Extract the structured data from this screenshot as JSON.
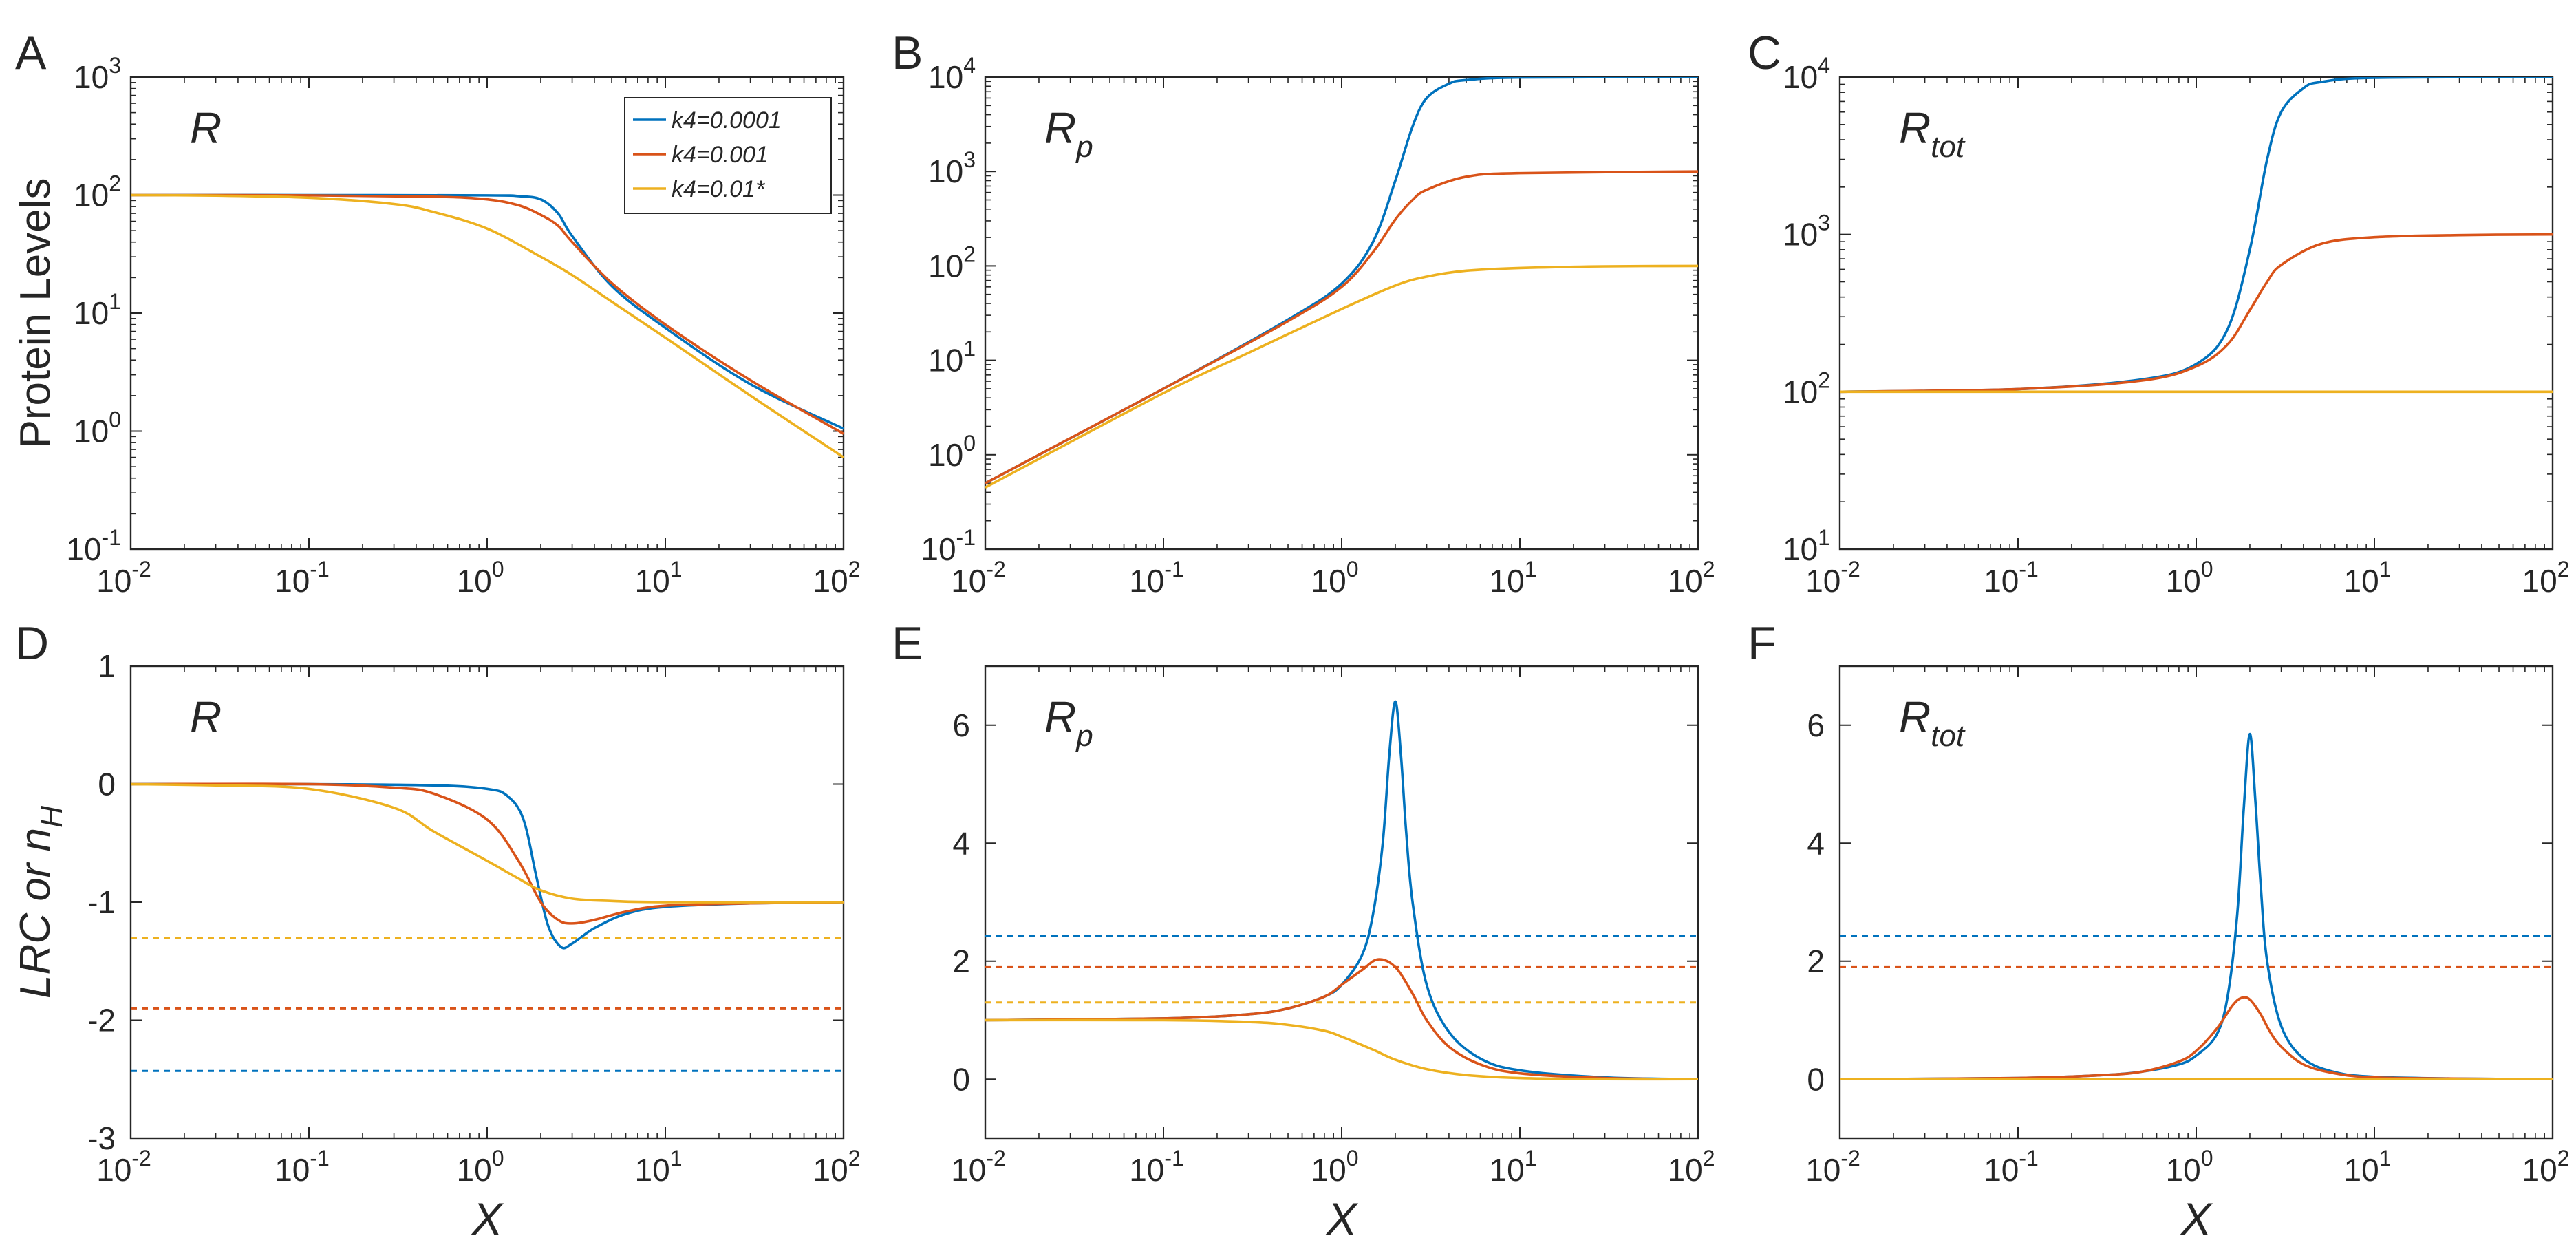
{
  "chart_data": [
    {
      "panel": "A",
      "title": "R",
      "title_sub": "",
      "type": "line",
      "xscale": "log",
      "yscale": "log",
      "xlim": [
        0.01,
        100
      ],
      "ylim": [
        0.1,
        1000
      ],
      "xlabel": "",
      "ylabel": "Protein Levels",
      "xticks": [
        {
          "base": "10",
          "exp": "-2"
        },
        {
          "base": "10",
          "exp": "-1"
        },
        {
          "base": "10",
          "exp": "0"
        },
        {
          "base": "10",
          "exp": "1"
        },
        {
          "base": "10",
          "exp": "2"
        }
      ],
      "yticks": [
        {
          "base": "10",
          "exp": "-1"
        },
        {
          "base": "10",
          "exp": "0"
        },
        {
          "base": "10",
          "exp": "1"
        },
        {
          "base": "10",
          "exp": "2"
        },
        {
          "base": "10",
          "exp": "3"
        }
      ],
      "legend": {
        "placement": "top-right",
        "entries": [
          "k4=0.0001",
          "k4=0.001",
          "k4=0.01*"
        ]
      },
      "series": [
        {
          "name": "k4=0.0001",
          "color": "#0072bd",
          "x": [
            0.01,
            0.1,
            1,
            1.5,
            2,
            2.5,
            3,
            5,
            10,
            30,
            100
          ],
          "y": [
            100,
            100,
            99.5,
            98,
            92,
            70,
            45,
            17,
            7.5,
            2.5,
            1.05
          ]
        },
        {
          "name": "k4=0.001",
          "color": "#d95319",
          "x": [
            0.01,
            0.1,
            0.5,
            1,
            1.5,
            2,
            2.5,
            3,
            5,
            10,
            30,
            100
          ],
          "y": [
            100,
            99.5,
            97,
            92,
            82,
            68,
            55,
            40,
            18,
            8,
            2.7,
            0.95
          ]
        },
        {
          "name": "k4=0.01*",
          "color": "#edb120",
          "x": [
            0.01,
            0.03,
            0.1,
            0.3,
            0.5,
            1,
            2,
            3,
            5,
            10,
            30,
            100
          ],
          "y": [
            100,
            99,
            95,
            84,
            72,
            52,
            30,
            21,
            12.5,
            6.2,
            2,
            0.6
          ]
        }
      ]
    },
    {
      "panel": "B",
      "title": "R",
      "title_sub": "p",
      "type": "line",
      "xscale": "log",
      "yscale": "log",
      "xlim": [
        0.01,
        100
      ],
      "ylim": [
        0.1,
        10000
      ],
      "xlabel": "",
      "ylabel": "",
      "xticks": [
        {
          "base": "10",
          "exp": "-2"
        },
        {
          "base": "10",
          "exp": "-1"
        },
        {
          "base": "10",
          "exp": "0"
        },
        {
          "base": "10",
          "exp": "1"
        },
        {
          "base": "10",
          "exp": "2"
        }
      ],
      "yticks": [
        {
          "base": "10",
          "exp": "-1"
        },
        {
          "base": "10",
          "exp": "0"
        },
        {
          "base": "10",
          "exp": "1"
        },
        {
          "base": "10",
          "exp": "2"
        },
        {
          "base": "10",
          "exp": "3"
        },
        {
          "base": "10",
          "exp": "4"
        }
      ],
      "series": [
        {
          "name": "k4=0.0001",
          "color": "#0072bd",
          "x": [
            0.01,
            0.1,
            0.5,
            1,
            1.5,
            2,
            2.5,
            3,
            4,
            5,
            10,
            100
          ],
          "y": [
            0.5,
            5,
            27,
            65,
            180,
            800,
            3000,
            6000,
            8500,
            9300,
            9900,
            10000
          ]
        },
        {
          "name": "k4=0.001",
          "color": "#d95319",
          "x": [
            0.01,
            0.1,
            0.5,
            1,
            1.5,
            2,
            2.5,
            3,
            5,
            10,
            100
          ],
          "y": [
            0.5,
            5,
            26,
            60,
            140,
            310,
            500,
            640,
            880,
            960,
            1000
          ]
        },
        {
          "name": "k4=0.01*",
          "color": "#edb120",
          "x": [
            0.01,
            0.1,
            0.3,
            1,
            2,
            3,
            5,
            10,
            30,
            100
          ],
          "y": [
            0.45,
            4.5,
            12,
            35,
            62,
            77,
            89,
            95,
            99,
            100
          ]
        }
      ]
    },
    {
      "panel": "C",
      "title": "R",
      "title_sub": "tot",
      "type": "line",
      "xscale": "log",
      "yscale": "log",
      "xlim": [
        0.01,
        100
      ],
      "ylim": [
        10,
        10000
      ],
      "xlabel": "",
      "ylabel": "",
      "xticks": [
        {
          "base": "10",
          "exp": "-2"
        },
        {
          "base": "10",
          "exp": "-1"
        },
        {
          "base": "10",
          "exp": "0"
        },
        {
          "base": "10",
          "exp": "1"
        },
        {
          "base": "10",
          "exp": "2"
        }
      ],
      "yticks": [
        {
          "base": "10",
          "exp": "1"
        },
        {
          "base": "10",
          "exp": "2"
        },
        {
          "base": "10",
          "exp": "3"
        },
        {
          "base": "10",
          "exp": "4"
        }
      ],
      "series": [
        {
          "name": "k4=0.0001",
          "color": "#0072bd",
          "x": [
            0.01,
            0.1,
            0.5,
            1,
            1.5,
            2,
            2.5,
            3,
            4,
            5,
            10,
            100
          ],
          "y": [
            100,
            104,
            120,
            150,
            250,
            800,
            3000,
            6000,
            8500,
            9300,
            9900,
            10000
          ]
        },
        {
          "name": "k4=0.001",
          "color": "#d95319",
          "x": [
            0.01,
            0.1,
            0.5,
            1,
            1.5,
            2,
            2.5,
            3,
            5,
            10,
            30,
            100
          ],
          "y": [
            100,
            104,
            118,
            145,
            200,
            330,
            500,
            640,
            870,
            960,
            990,
            1000
          ]
        },
        {
          "name": "k4=0.01*",
          "color": "#edb120",
          "x": [
            0.01,
            100
          ],
          "y": [
            100,
            100
          ]
        }
      ]
    },
    {
      "panel": "D",
      "title": "R",
      "title_sub": "",
      "type": "line",
      "xscale": "log",
      "yscale": "linear",
      "xlim": [
        0.01,
        100
      ],
      "ylim": [
        -3,
        1
      ],
      "xlabel": "X",
      "ylabel": "LRC or n",
      "ylabel_sub": "H",
      "xticks": [
        {
          "base": "10",
          "exp": "-2"
        },
        {
          "base": "10",
          "exp": "-1"
        },
        {
          "base": "10",
          "exp": "0"
        },
        {
          "base": "10",
          "exp": "1"
        },
        {
          "base": "10",
          "exp": "2"
        }
      ],
      "yticks": [
        "1",
        "0",
        "-1",
        "-2",
        "-3"
      ],
      "ytick_values": [
        1,
        0,
        -1,
        -2,
        -3
      ],
      "series": [
        {
          "name": "k4=0.0001",
          "color": "#0072bd",
          "x": [
            0.01,
            0.1,
            0.5,
            1,
            1.3,
            1.6,
            1.9,
            2.2,
            2.6,
            3,
            4,
            6,
            10,
            30,
            100
          ],
          "y": [
            0,
            0,
            -0.01,
            -0.04,
            -0.1,
            -0.3,
            -0.8,
            -1.2,
            -1.38,
            -1.35,
            -1.22,
            -1.1,
            -1.04,
            -1.01,
            -1
          ]
        },
        {
          "name": "k4=0.001",
          "color": "#d95319",
          "x": [
            0.01,
            0.1,
            0.3,
            0.5,
            1,
            1.5,
            2,
            2.5,
            3,
            4,
            6,
            10,
            30,
            100
          ],
          "y": [
            0,
            0,
            -0.03,
            -0.08,
            -0.3,
            -0.65,
            -1.0,
            -1.15,
            -1.18,
            -1.15,
            -1.08,
            -1.03,
            -1.01,
            -1
          ]
        },
        {
          "name": "k4=0.01*",
          "color": "#edb120",
          "x": [
            0.01,
            0.03,
            0.1,
            0.3,
            0.5,
            1,
            1.5,
            2,
            3,
            5,
            10,
            100
          ],
          "y": [
            0,
            -0.01,
            -0.04,
            -0.2,
            -0.4,
            -0.65,
            -0.8,
            -0.9,
            -0.97,
            -0.99,
            -1,
            -1
          ]
        }
      ],
      "reference_lines": [
        {
          "name": "k4=0.0001 nH",
          "color": "#0072bd",
          "y": -2.43
        },
        {
          "name": "k4=0.001 nH",
          "color": "#d95319",
          "y": -1.9
        },
        {
          "name": "k4=0.01* nH",
          "color": "#edb120",
          "y": -1.3
        }
      ]
    },
    {
      "panel": "E",
      "title": "R",
      "title_sub": "p",
      "type": "line",
      "xscale": "log",
      "yscale": "linear",
      "xlim": [
        0.01,
        100
      ],
      "ylim": [
        -1,
        7
      ],
      "xlabel": "X",
      "ylabel": "",
      "xticks": [
        {
          "base": "10",
          "exp": "-2"
        },
        {
          "base": "10",
          "exp": "-1"
        },
        {
          "base": "10",
          "exp": "0"
        },
        {
          "base": "10",
          "exp": "1"
        },
        {
          "base": "10",
          "exp": "2"
        }
      ],
      "yticks": [
        "6",
        "4",
        "2",
        "0"
      ],
      "ytick_values": [
        6,
        4,
        2,
        0
      ],
      "series": [
        {
          "name": "k4=0.0001",
          "color": "#0072bd",
          "x": [
            0.01,
            0.1,
            0.3,
            0.5,
            0.8,
            1,
            1.3,
            1.5,
            1.7,
            1.85,
            2,
            2.15,
            2.3,
            2.5,
            3,
            4,
            6,
            10,
            30,
            100
          ],
          "y": [
            1.0,
            1.03,
            1.1,
            1.2,
            1.4,
            1.6,
            2.1,
            2.8,
            4.0,
            5.5,
            6.4,
            5.5,
            4.2,
            3.0,
            1.6,
            0.8,
            0.35,
            0.15,
            0.03,
            0
          ]
        },
        {
          "name": "k4=0.001",
          "color": "#d95319",
          "x": [
            0.01,
            0.1,
            0.3,
            0.5,
            0.8,
            1,
            1.3,
            1.6,
            2,
            2.5,
            3,
            4,
            6,
            10,
            30,
            100
          ],
          "y": [
            1.0,
            1.03,
            1.1,
            1.2,
            1.4,
            1.6,
            1.85,
            2.03,
            1.9,
            1.45,
            1.0,
            0.55,
            0.25,
            0.1,
            0.02,
            0
          ]
        },
        {
          "name": "k4=0.01*",
          "color": "#edb120",
          "x": [
            0.01,
            0.1,
            0.3,
            0.5,
            0.8,
            1,
            1.5,
            2,
            3,
            5,
            10,
            30,
            100
          ],
          "y": [
            1.0,
            1.0,
            0.97,
            0.92,
            0.82,
            0.72,
            0.5,
            0.33,
            0.17,
            0.07,
            0.02,
            0,
            0
          ]
        }
      ],
      "reference_lines": [
        {
          "name": "k4=0.0001 nH",
          "color": "#0072bd",
          "y": 2.43
        },
        {
          "name": "k4=0.001 nH",
          "color": "#d95319",
          "y": 1.9
        },
        {
          "name": "k4=0.01* nH",
          "color": "#edb120",
          "y": 1.3
        }
      ]
    },
    {
      "panel": "F",
      "title": "R",
      "title_sub": "tot",
      "type": "line",
      "xscale": "log",
      "yscale": "linear",
      "xlim": [
        0.01,
        100
      ],
      "ylim": [
        -1,
        7
      ],
      "xlabel": "X",
      "ylabel": "",
      "xticks": [
        {
          "base": "10",
          "exp": "-2"
        },
        {
          "base": "10",
          "exp": "-1"
        },
        {
          "base": "10",
          "exp": "0"
        },
        {
          "base": "10",
          "exp": "1"
        },
        {
          "base": "10",
          "exp": "2"
        }
      ],
      "yticks": [
        "6",
        "4",
        "2",
        "0"
      ],
      "ytick_values": [
        6,
        4,
        2,
        0
      ],
      "series": [
        {
          "name": "k4=0.0001",
          "color": "#0072bd",
          "x": [
            0.01,
            0.1,
            0.3,
            0.5,
            0.8,
            1,
            1.3,
            1.5,
            1.7,
            1.85,
            2,
            2.15,
            2.3,
            2.5,
            3,
            4,
            6,
            10,
            30,
            100
          ],
          "y": [
            0,
            0.02,
            0.07,
            0.13,
            0.25,
            0.4,
            0.75,
            1.4,
            2.8,
            4.6,
            5.85,
            4.7,
            3.3,
            2.0,
            0.9,
            0.35,
            0.12,
            0.04,
            0.01,
            0
          ]
        },
        {
          "name": "k4=0.001",
          "color": "#d95319",
          "x": [
            0.01,
            0.1,
            0.3,
            0.5,
            0.8,
            1,
            1.3,
            1.6,
            1.8,
            2,
            2.3,
            2.6,
            3,
            4,
            6,
            10,
            30,
            100
          ],
          "y": [
            0,
            0.02,
            0.07,
            0.13,
            0.3,
            0.48,
            0.85,
            1.25,
            1.38,
            1.35,
            1.1,
            0.8,
            0.55,
            0.25,
            0.1,
            0.03,
            0.01,
            0
          ]
        },
        {
          "name": "k4=0.01*",
          "color": "#edb120",
          "x": [
            0.01,
            100
          ],
          "y": [
            0,
            0
          ]
        }
      ],
      "reference_lines": [
        {
          "name": "k4=0.0001 nH",
          "color": "#0072bd",
          "y": 2.43
        },
        {
          "name": "k4=0.001 nH",
          "color": "#d95319",
          "y": 1.9
        }
      ]
    }
  ]
}
